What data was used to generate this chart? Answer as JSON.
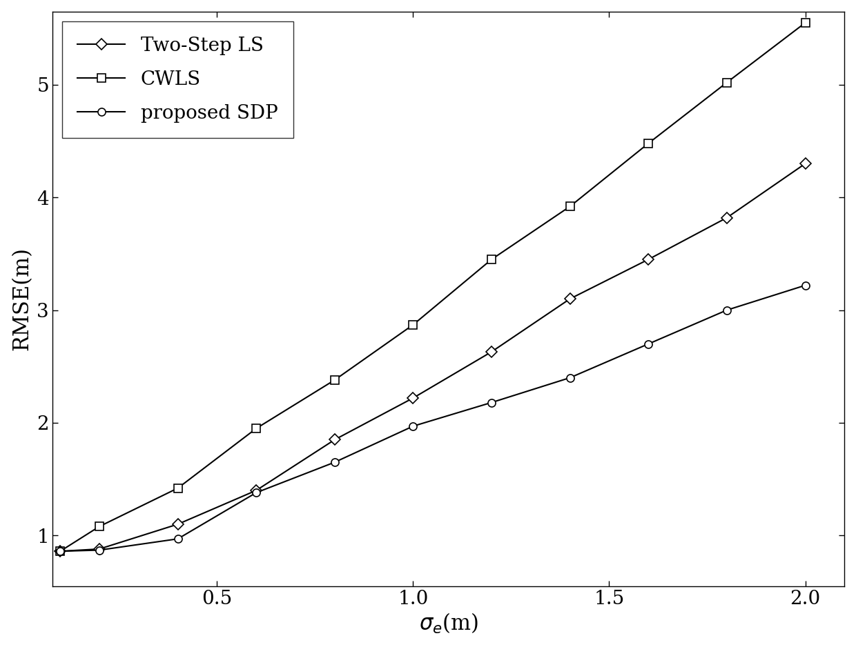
{
  "x": [
    0.1,
    0.2,
    0.4,
    0.6,
    0.8,
    1.0,
    1.2,
    1.4,
    1.6,
    1.8,
    2.0
  ],
  "two_step_ls": [
    0.86,
    0.88,
    1.1,
    1.4,
    1.85,
    2.22,
    2.63,
    3.1,
    3.45,
    3.82,
    4.3
  ],
  "cwls": [
    0.86,
    1.08,
    1.42,
    1.95,
    2.38,
    2.87,
    3.45,
    3.92,
    4.48,
    5.02,
    5.55
  ],
  "proposed_sdp": [
    0.86,
    0.87,
    0.97,
    1.38,
    1.65,
    1.97,
    2.18,
    2.4,
    2.7,
    3.0,
    3.22
  ],
  "xlabel": "$\\sigma_e$(m)",
  "ylabel": "RMSE(m)",
  "legend_labels": [
    "Two-Step LS",
    "CWLS",
    "proposed SDP"
  ],
  "xlim": [
    0.08,
    2.1
  ],
  "ylim": [
    0.55,
    5.65
  ],
  "xticks": [
    0.5,
    1.0,
    1.5,
    2.0
  ],
  "yticks": [
    1,
    2,
    3,
    4,
    5
  ],
  "color": "#000000",
  "linewidth": 1.5,
  "markersize": 8,
  "fontsize": 22,
  "legend_fontsize": 20,
  "tick_fontsize": 20
}
